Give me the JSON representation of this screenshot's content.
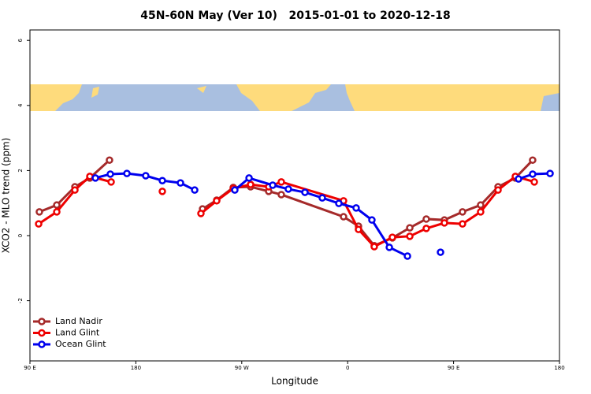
{
  "chart_data": {
    "type": "line",
    "title": "45N-60N May (Ver 10)   2015-01-01 to 2020-12-18",
    "x_label": "Longitude",
    "y_label": "XCO2 - MLO trend (ppm)",
    "xlim": [
      90,
      540
    ],
    "xticks": [
      {
        "value": 90,
        "label": "90 E"
      },
      {
        "value": 180,
        "label": "180"
      },
      {
        "value": 270,
        "label": "90 W"
      },
      {
        "value": 360,
        "label": "0"
      },
      {
        "value": 450,
        "label": "90 E"
      },
      {
        "value": 540,
        "label": "180"
      }
    ],
    "ylim": [
      -3.85,
      6.32
    ],
    "yticks": [
      -2,
      0,
      2,
      4,
      6
    ],
    "legend": "bottom-left",
    "series": [
      {
        "name": "Land Nadir",
        "color": "#a52a2a",
        "x": [
          98,
          112.8,
          128.2,
          140.9,
          157.6,
          null,
          236.7,
          248.7,
          262.8,
          277.5,
          292.9,
          303.6,
          356.5,
          369.2,
          382.6,
          398,
          412.8,
          426.8,
          442.2,
          457.6,
          473,
          487.8,
          502.5,
          517.2
        ],
        "values": [
          0.73,
          0.94,
          1.5,
          1.77,
          2.32,
          null,
          0.82,
          1.09,
          1.48,
          1.5,
          1.36,
          1.26,
          0.58,
          0.29,
          -0.31,
          -0.07,
          0.24,
          0.51,
          0.48,
          0.73,
          0.94,
          1.5,
          1.77,
          2.32
        ]
      },
      {
        "name": "Land Glint",
        "color": "#ee0000",
        "x": [
          97.4,
          112.8,
          128.2,
          140.9,
          159,
          null,
          202.5,
          null,
          235.3,
          248.7,
          262.8,
          277.5,
          292.9,
          303.6,
          356.5,
          369.2,
          382.6,
          398,
          412.8,
          426.8,
          442.2,
          457.6,
          473,
          487.8,
          502.5,
          518.6
        ],
        "values": [
          0.36,
          0.73,
          1.4,
          1.82,
          1.65,
          null,
          1.36,
          null,
          0.68,
          1.07,
          1.45,
          1.57,
          1.5,
          1.65,
          1.07,
          0.19,
          -0.34,
          -0.05,
          -0.02,
          0.22,
          0.39,
          0.36,
          0.73,
          1.4,
          1.82,
          1.65
        ]
      },
      {
        "name": "Ocean Glint",
        "color": "#0000ee",
        "x": [
          145.6,
          158.3,
          172.4,
          188.4,
          202.5,
          217.9,
          230,
          null,
          264.1,
          276.2,
          296.3,
          309.6,
          323.7,
          338.4,
          352.5,
          367.2,
          380.6,
          395.4,
          410.8,
          null,
          438.9,
          null,
          505.2,
          517.2,
          532
        ],
        "values": [
          1.77,
          1.89,
          1.91,
          1.84,
          1.69,
          1.62,
          1.4,
          null,
          1.4,
          1.77,
          1.55,
          1.43,
          1.33,
          1.16,
          0.99,
          0.85,
          0.48,
          -0.36,
          -0.63,
          null,
          -0.51,
          null,
          1.74,
          1.89,
          1.91
        ]
      }
    ]
  }
}
